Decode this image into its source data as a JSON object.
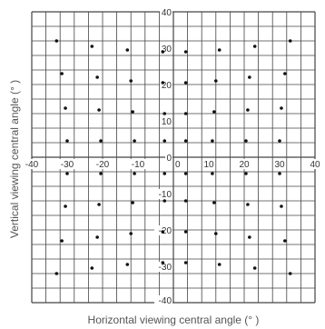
{
  "chart_data": {
    "type": "scatter",
    "xlabel": "Horizontal viewing central angle (° )",
    "ylabel": "Vertical viewing central angle (° )",
    "xlim": [
      -40,
      40
    ],
    "ylim": [
      -40,
      40
    ],
    "grid_step": 4,
    "grid": true,
    "x_ticks": [
      {
        "value": -40,
        "label": "-40"
      },
      {
        "value": -30,
        "label": "-30"
      },
      {
        "value": -20,
        "label": "-20"
      },
      {
        "value": -10,
        "label": "-10"
      },
      {
        "value": 0,
        "label": "0"
      },
      {
        "value": 10,
        "label": "10"
      },
      {
        "value": 20,
        "label": "20"
      },
      {
        "value": 30,
        "label": "30"
      },
      {
        "value": 40,
        "label": "40"
      }
    ],
    "y_ticks": [
      {
        "value": 40,
        "label": "40"
      },
      {
        "value": 30,
        "label": "30"
      },
      {
        "value": 20,
        "label": "20"
      },
      {
        "value": 10,
        "label": "10"
      },
      {
        "value": 0,
        "label": "0"
      },
      {
        "value": -10,
        "label": "-10"
      },
      {
        "value": -20,
        "label": "-20"
      },
      {
        "value": -30,
        "label": "-30"
      },
      {
        "value": -40,
        "label": "-40"
      }
    ],
    "points": [
      {
        "x": -33,
        "y": 32
      },
      {
        "x": -23,
        "y": 30.5
      },
      {
        "x": -13,
        "y": 29.5
      },
      {
        "x": -3,
        "y": 29
      },
      {
        "x": 3.5,
        "y": 29
      },
      {
        "x": 13,
        "y": 29.5
      },
      {
        "x": 23,
        "y": 30.5
      },
      {
        "x": 33,
        "y": 32
      },
      {
        "x": -31.5,
        "y": 23
      },
      {
        "x": -21.5,
        "y": 22
      },
      {
        "x": -12,
        "y": 21
      },
      {
        "x": -3,
        "y": 20.5
      },
      {
        "x": 3.5,
        "y": 20.5
      },
      {
        "x": 12,
        "y": 21
      },
      {
        "x": 21.5,
        "y": 22
      },
      {
        "x": 31.5,
        "y": 23
      },
      {
        "x": -30.5,
        "y": 13.5
      },
      {
        "x": -21,
        "y": 13
      },
      {
        "x": -11.5,
        "y": 12.5
      },
      {
        "x": -2.5,
        "y": 12
      },
      {
        "x": 3.5,
        "y": 12
      },
      {
        "x": 11.5,
        "y": 12.5
      },
      {
        "x": 21,
        "y": 13
      },
      {
        "x": 30.5,
        "y": 13.5
      },
      {
        "x": -30,
        "y": 4.5
      },
      {
        "x": -20.5,
        "y": 4.5
      },
      {
        "x": -11,
        "y": 4.5
      },
      {
        "x": -2.5,
        "y": 4.5
      },
      {
        "x": 3.5,
        "y": 4.5
      },
      {
        "x": 11,
        "y": 4.5
      },
      {
        "x": 20.5,
        "y": 4.5
      },
      {
        "x": 30,
        "y": 4.5
      },
      {
        "x": -30,
        "y": -4.5
      },
      {
        "x": -20.5,
        "y": -4.5
      },
      {
        "x": -11,
        "y": -4.5
      },
      {
        "x": -2.5,
        "y": -4.5
      },
      {
        "x": 3.5,
        "y": -4.5
      },
      {
        "x": 11,
        "y": -4.5
      },
      {
        "x": 20.5,
        "y": -4.5
      },
      {
        "x": 30,
        "y": -4.5
      },
      {
        "x": -30.5,
        "y": -13.5
      },
      {
        "x": -21,
        "y": -13
      },
      {
        "x": -11.5,
        "y": -12.5
      },
      {
        "x": -2.5,
        "y": -12
      },
      {
        "x": 3.5,
        "y": -12
      },
      {
        "x": 11.5,
        "y": -12.5
      },
      {
        "x": 21,
        "y": -13
      },
      {
        "x": 30.5,
        "y": -13.5
      },
      {
        "x": -31.5,
        "y": -23
      },
      {
        "x": -21.5,
        "y": -22
      },
      {
        "x": -12,
        "y": -21
      },
      {
        "x": -3,
        "y": -20.5
      },
      {
        "x": 3.5,
        "y": -20.5
      },
      {
        "x": 12,
        "y": -21
      },
      {
        "x": 21.5,
        "y": -22
      },
      {
        "x": 31.5,
        "y": -23
      },
      {
        "x": -33,
        "y": -32
      },
      {
        "x": -23,
        "y": -30.5
      },
      {
        "x": -13,
        "y": -29.5
      },
      {
        "x": -3,
        "y": -29
      },
      {
        "x": 3.5,
        "y": -29
      },
      {
        "x": 13,
        "y": -29.5
      },
      {
        "x": 23,
        "y": -30.5
      },
      {
        "x": 33,
        "y": -32
      }
    ],
    "colors": {
      "grid": "#444444",
      "points": "#111111",
      "axis_text": "#333333",
      "title_text": "#555555"
    }
  }
}
